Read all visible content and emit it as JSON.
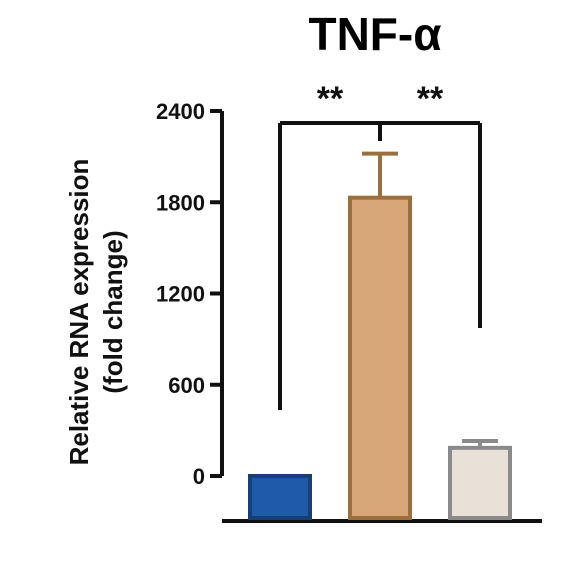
{
  "chart_data": {
    "type": "bar",
    "title": "TNF-α",
    "ylabel": [
      "Relative RNA expression",
      "(fold change)"
    ],
    "xlabel": "",
    "ylim": [
      0,
      2400
    ],
    "yticks": [
      0,
      600,
      1200,
      1800,
      2400
    ],
    "ytick_labels": [
      "0",
      "600",
      "1200",
      "1800",
      "2400"
    ],
    "categories": [
      "",
      "",
      ""
    ],
    "values": [
      0,
      1830,
      185
    ],
    "errors": [
      0,
      290,
      45
    ],
    "colors": [
      "#1e5aa8",
      "#d8a779",
      "#e8e1d7"
    ],
    "edge_colors": [
      "#163f78",
      "#9c6f3e",
      "#8a8a8a"
    ],
    "annotations": [
      {
        "text": "**",
        "between": [
          0,
          1
        ]
      },
      {
        "text": "**",
        "between": [
          1,
          2
        ]
      }
    ],
    "grid": false,
    "legend": "none"
  }
}
